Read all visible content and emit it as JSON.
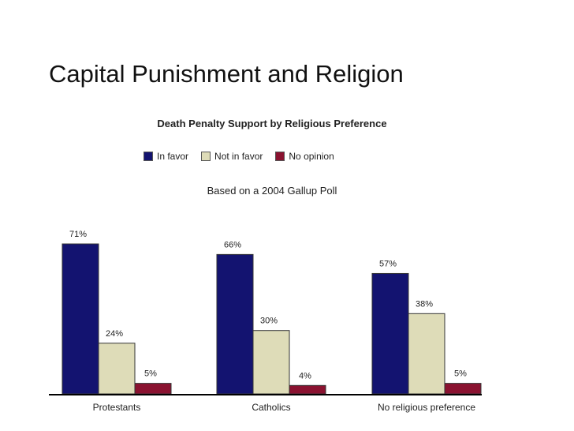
{
  "slide": {
    "title": "Capital Punishment and Religion"
  },
  "chart_data": {
    "type": "bar",
    "title": "Death Penalty Support by Religious Preference",
    "subtitle": "Based on a 2004 Gallup Poll",
    "categories": [
      "Protestants",
      "Catholics",
      "No religious preference"
    ],
    "series": [
      {
        "name": "In favor",
        "values": [
          71,
          66,
          57
        ],
        "labels": [
          "71%",
          "66%",
          "57%"
        ],
        "color": "#131370"
      },
      {
        "name": "Not in favor",
        "values": [
          24,
          30,
          38
        ],
        "labels": [
          "24%",
          "30%",
          "38%"
        ],
        "color": "#dedcb8"
      },
      {
        "name": "No opinion",
        "values": [
          5,
          4,
          5
        ],
        "labels": [
          "5%",
          "4%",
          "5%"
        ],
        "color": "#8a1230"
      }
    ],
    "ylim": [
      0,
      71
    ],
    "grid": false,
    "legend_position": "top"
  }
}
